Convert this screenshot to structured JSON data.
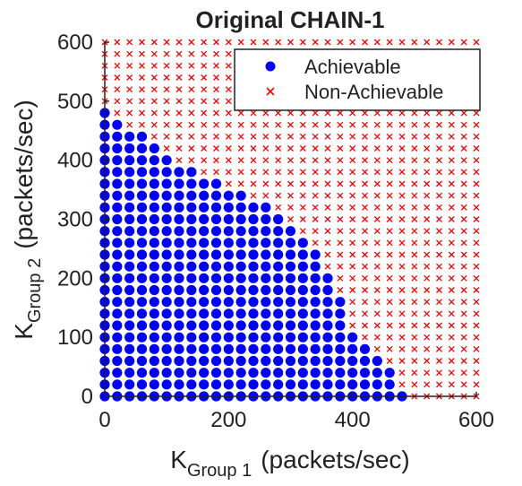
{
  "chart_data": {
    "type": "scatter",
    "title": "Original CHAIN-1",
    "xlabel": {
      "main": "K",
      "sub": "Group 1",
      "rest": "(packets/sec)"
    },
    "ylabel": {
      "main": "K",
      "sub": "Group 2",
      "rest": "(packets/sec)"
    },
    "xlim": [
      0,
      600
    ],
    "ylim": [
      0,
      600
    ],
    "xticks": [
      0,
      200,
      400,
      600
    ],
    "yticks": [
      0,
      100,
      200,
      300,
      400,
      500,
      600
    ],
    "grid": false,
    "legend_position": "top-right",
    "grid_step": 20,
    "boundary": [
      [
        0,
        480
      ],
      [
        20,
        460
      ],
      [
        40,
        440
      ],
      [
        60,
        440
      ],
      [
        80,
        420
      ],
      [
        100,
        400
      ],
      [
        120,
        380
      ],
      [
        140,
        380
      ],
      [
        160,
        360
      ],
      [
        180,
        360
      ],
      [
        200,
        340
      ],
      [
        220,
        340
      ],
      [
        240,
        320
      ],
      [
        260,
        320
      ],
      [
        280,
        300
      ],
      [
        300,
        280
      ],
      [
        320,
        260
      ],
      [
        340,
        240
      ],
      [
        360,
        200
      ],
      [
        380,
        160
      ],
      [
        400,
        100
      ],
      [
        420,
        80
      ],
      [
        440,
        60
      ],
      [
        460,
        40
      ],
      [
        480,
        0
      ]
    ],
    "series": [
      {
        "name": "Achievable",
        "marker": "circle",
        "color": "#0000ff"
      },
      {
        "name": "Non-Achievable",
        "marker": "x",
        "color": "#ff0000"
      }
    ]
  }
}
